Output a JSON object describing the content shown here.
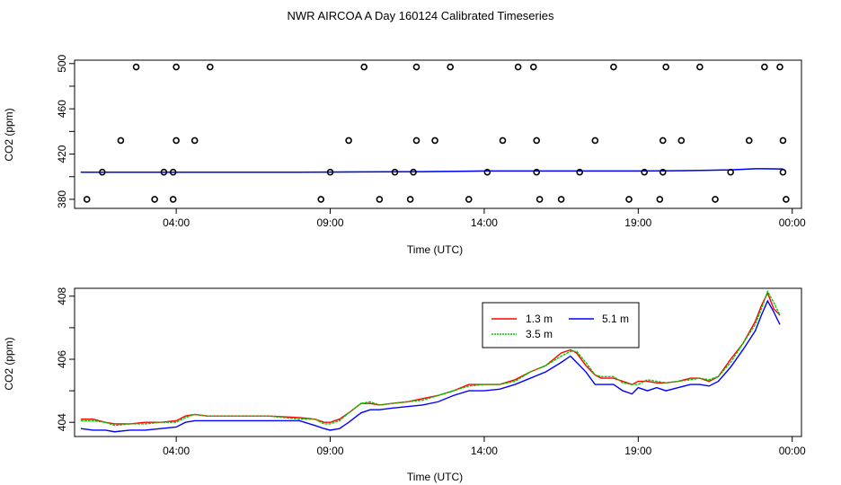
{
  "title": "NWR AIRCOA A  Day 160124  Calibrated Timeseries",
  "colors": {
    "red": "#ff0000",
    "green": "#00cc00",
    "blue": "#0000ff",
    "black": "#000000"
  },
  "chart_data": [
    {
      "type": "scatter",
      "name": "top-panel",
      "xlabel": "Time (UTC)",
      "ylabel": "CO2 (ppm)",
      "x_unit": "hours",
      "xlim": [
        0.7,
        24.3
      ],
      "ylim": [
        372,
        503
      ],
      "x_ticks": [
        4,
        9,
        14,
        19,
        24
      ],
      "x_tick_labels": [
        "04:00",
        "09:00",
        "14:00",
        "19:00",
        "00:00"
      ],
      "y_ticks": [
        380,
        420,
        460,
        500
      ],
      "y_tick_labels": [
        "380",
        "420",
        "460",
        "500"
      ],
      "points": [
        [
          1.1,
          380
        ],
        [
          1.6,
          404
        ],
        [
          2.2,
          432
        ],
        [
          2.7,
          497
        ],
        [
          3.3,
          380
        ],
        [
          3.6,
          404
        ],
        [
          3.9,
          380
        ],
        [
          3.9,
          404
        ],
        [
          4.0,
          432
        ],
        [
          4.0,
          497
        ],
        [
          4.6,
          432
        ],
        [
          5.1,
          497
        ],
        [
          8.7,
          380
        ],
        [
          9.0,
          404
        ],
        [
          9.6,
          432
        ],
        [
          10.1,
          497
        ],
        [
          10.6,
          380
        ],
        [
          11.1,
          404
        ],
        [
          11.6,
          380
        ],
        [
          11.7,
          404
        ],
        [
          11.8,
          432
        ],
        [
          11.8,
          497
        ],
        [
          12.4,
          432
        ],
        [
          12.9,
          497
        ],
        [
          13.5,
          380
        ],
        [
          14.1,
          404
        ],
        [
          14.6,
          432
        ],
        [
          15.1,
          497
        ],
        [
          15.6,
          497
        ],
        [
          15.7,
          432
        ],
        [
          15.7,
          404
        ],
        [
          15.8,
          380
        ],
        [
          16.5,
          380
        ],
        [
          17.1,
          404
        ],
        [
          17.6,
          432
        ],
        [
          18.2,
          497
        ],
        [
          18.7,
          380
        ],
        [
          19.2,
          404
        ],
        [
          19.7,
          380
        ],
        [
          19.8,
          404
        ],
        [
          19.8,
          432
        ],
        [
          19.9,
          497
        ],
        [
          20.4,
          432
        ],
        [
          21.0,
          497
        ],
        [
          21.5,
          380
        ],
        [
          22.0,
          404
        ],
        [
          22.6,
          432
        ],
        [
          23.1,
          497
        ],
        [
          23.6,
          497
        ],
        [
          23.7,
          432
        ],
        [
          23.7,
          404
        ],
        [
          23.8,
          380
        ]
      ],
      "line": {
        "x": [
          0.9,
          4.0,
          8.0,
          12.0,
          14.0,
          16.0,
          17.0,
          19.0,
          21.0,
          22.0,
          22.8,
          23.0,
          23.7
        ],
        "y": [
          404,
          404,
          404,
          404.5,
          405,
          405,
          405,
          405,
          405.5,
          406,
          407,
          407,
          406.8
        ]
      }
    },
    {
      "type": "line",
      "name": "bottom-panel",
      "xlabel": "Time (UTC)",
      "ylabel": "CO2 (ppm)",
      "x_unit": "hours",
      "xlim": [
        0.7,
        24.3
      ],
      "ylim": [
        403.55,
        408.25
      ],
      "x_ticks": [
        4,
        9,
        14,
        19,
        24
      ],
      "x_tick_labels": [
        "04:00",
        "09:00",
        "14:00",
        "19:00",
        "00:00"
      ],
      "y_ticks": [
        404,
        406,
        408
      ],
      "y_tick_labels": [
        "404",
        "406",
        "408"
      ],
      "x": [
        0.9,
        1.3,
        1.7,
        2.0,
        2.5,
        3.0,
        3.5,
        4.0,
        4.3,
        4.6,
        5.0,
        6.0,
        7.0,
        8.0,
        8.5,
        8.8,
        9.0,
        9.3,
        9.6,
        10.0,
        10.3,
        10.6,
        11.0,
        11.5,
        12.0,
        12.5,
        13.0,
        13.5,
        14.0,
        14.5,
        15.0,
        15.5,
        16.0,
        16.5,
        16.8,
        17.0,
        17.3,
        17.6,
        17.8,
        18.2,
        18.5,
        18.8,
        19.0,
        19.3,
        19.6,
        19.9,
        20.3,
        20.7,
        21.0,
        21.3,
        21.6,
        22.0,
        22.4,
        22.8,
        23.0,
        23.2,
        23.4,
        23.6
      ],
      "series": [
        {
          "name": "1.3 m",
          "color": "#ff0000",
          "values": [
            404.1,
            404.1,
            404.0,
            403.95,
            403.95,
            404.0,
            404.0,
            404.05,
            404.2,
            404.25,
            404.2,
            404.2,
            404.2,
            404.15,
            404.1,
            404.0,
            404.0,
            404.1,
            404.3,
            404.6,
            404.6,
            404.55,
            404.6,
            404.65,
            404.75,
            404.85,
            405.0,
            405.2,
            405.2,
            405.2,
            405.35,
            405.6,
            405.8,
            406.2,
            406.3,
            406.2,
            405.8,
            405.5,
            405.4,
            405.4,
            405.3,
            405.2,
            405.3,
            405.3,
            405.25,
            405.25,
            405.3,
            405.4,
            405.4,
            405.3,
            405.45,
            406.0,
            406.5,
            407.2,
            407.7,
            408.1,
            407.6,
            407.4
          ]
        },
        {
          "name": "3.5 m",
          "color": "#00cc00",
          "values": [
            404.05,
            404.05,
            404.0,
            403.9,
            403.95,
            403.95,
            404.0,
            404.0,
            404.15,
            404.25,
            404.2,
            404.2,
            404.2,
            404.1,
            404.1,
            403.95,
            403.95,
            404.05,
            404.3,
            404.6,
            404.65,
            404.55,
            404.6,
            404.65,
            404.7,
            404.85,
            405.0,
            405.15,
            405.2,
            405.2,
            405.3,
            405.6,
            405.8,
            406.1,
            406.25,
            406.25,
            405.9,
            405.5,
            405.45,
            405.45,
            405.25,
            405.2,
            405.2,
            405.35,
            405.3,
            405.25,
            405.3,
            405.35,
            405.4,
            405.35,
            405.45,
            405.9,
            406.5,
            407.1,
            407.6,
            408.15,
            407.8,
            407.4
          ]
        },
        {
          "name": "5.1 m",
          "color": "#0000ff",
          "values": [
            403.8,
            403.75,
            403.75,
            403.7,
            403.75,
            403.75,
            403.8,
            403.85,
            404.0,
            404.05,
            404.05,
            404.05,
            404.05,
            404.05,
            403.9,
            403.8,
            403.75,
            403.8,
            404.0,
            404.3,
            404.4,
            404.4,
            404.45,
            404.5,
            404.55,
            404.65,
            404.85,
            405.0,
            405.0,
            405.05,
            405.2,
            405.4,
            405.6,
            405.9,
            406.1,
            405.9,
            405.6,
            405.2,
            405.2,
            405.2,
            405.0,
            404.9,
            405.1,
            405.0,
            405.1,
            405.0,
            405.1,
            405.2,
            405.2,
            405.15,
            405.3,
            405.75,
            406.3,
            406.9,
            407.4,
            407.85,
            407.5,
            407.1
          ]
        }
      ],
      "legend": {
        "position": "top-right",
        "entries": [
          {
            "label": "1.3 m",
            "color": "#ff0000"
          },
          {
            "label": "3.5 m",
            "color": "#00cc00"
          },
          {
            "label": "5.1 m",
            "color": "#0000ff"
          }
        ]
      }
    }
  ]
}
